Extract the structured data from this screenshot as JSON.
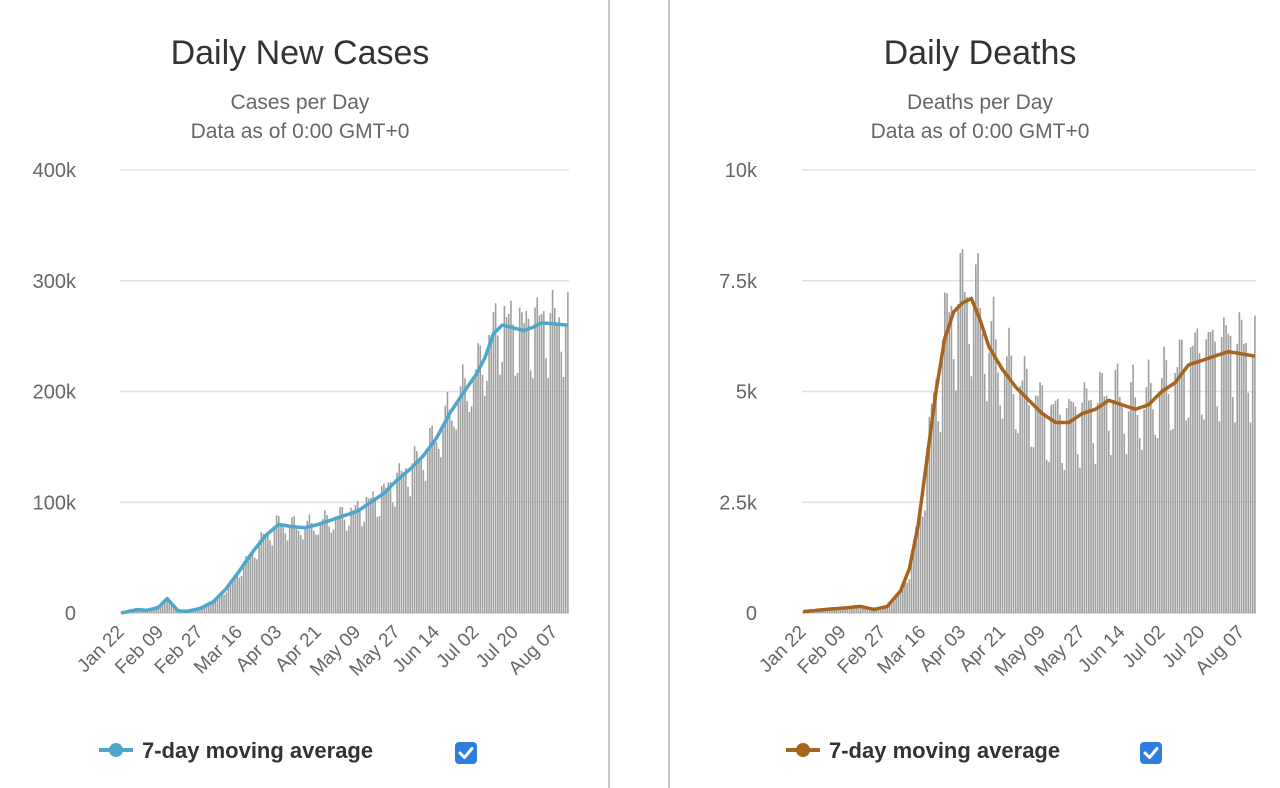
{
  "colors": {
    "bar": "#9e9e9e",
    "cases_line": "#4fa6cc",
    "deaths_line": "#a5651f",
    "grid": "#e0e0e0",
    "axis_text": "#666666",
    "checkbox": "#2f7de1"
  },
  "chart_data": [
    {
      "type": "bar",
      "title": "Daily New Cases",
      "subtitle_lines": [
        "Cases per Day",
        "Data as of 0:00 GMT+0"
      ],
      "ylim": [
        0,
        400000
      ],
      "y_ticks": [
        0,
        100000,
        200000,
        300000,
        400000
      ],
      "y_tick_labels": [
        "0",
        "100k",
        "200k",
        "300k",
        "400k"
      ],
      "x_tick_labels": [
        "Jan 22",
        "Feb 09",
        "Feb 27",
        "Mar 16",
        "Apr 03",
        "Apr 21",
        "May 09",
        "May 27",
        "Jun 14",
        "Jul 02",
        "Jul 20",
        "Aug 07"
      ],
      "start_date": "Jan 22",
      "anchors": [
        [
          0,
          0
        ],
        [
          7,
          3000
        ],
        [
          12,
          2500
        ],
        [
          17,
          5000
        ],
        [
          21,
          13000
        ],
        [
          26,
          2000
        ],
        [
          30,
          1500
        ],
        [
          36,
          4000
        ],
        [
          42,
          10000
        ],
        [
          48,
          22000
        ],
        [
          54,
          38000
        ],
        [
          60,
          55000
        ],
        [
          66,
          70000
        ],
        [
          72,
          80000
        ],
        [
          78,
          78000
        ],
        [
          84,
          77000
        ],
        [
          90,
          80000
        ],
        [
          96,
          84000
        ],
        [
          102,
          88000
        ],
        [
          108,
          92000
        ],
        [
          114,
          100000
        ],
        [
          120,
          108000
        ],
        [
          126,
          120000
        ],
        [
          132,
          130000
        ],
        [
          138,
          142000
        ],
        [
          144,
          158000
        ],
        [
          150,
          180000
        ],
        [
          156,
          198000
        ],
        [
          162,
          215000
        ],
        [
          166,
          230000
        ],
        [
          170,
          252000
        ],
        [
          174,
          260000
        ],
        [
          178,
          258000
        ],
        [
          184,
          255000
        ],
        [
          188,
          258000
        ],
        [
          192,
          262000
        ],
        [
          204,
          260000
        ]
      ],
      "daily_pattern": [
        1.0,
        1.06,
        1.1,
        1.08,
        1.01,
        0.87,
        0.83
      ],
      "series": [
        {
          "name": "7-day moving average",
          "type": "line"
        }
      ],
      "legend": {
        "label": "7-day moving average",
        "placement": "bottom",
        "checked": true
      }
    },
    {
      "type": "bar",
      "title": "Daily Deaths",
      "subtitle_lines": [
        "Deaths per Day",
        "Data as of 0:00 GMT+0"
      ],
      "ylim": [
        0,
        10000
      ],
      "y_ticks": [
        0,
        2500,
        5000,
        7500,
        10000
      ],
      "y_tick_labels": [
        "0",
        "2.5k",
        "5k",
        "7.5k",
        "10k"
      ],
      "x_tick_labels": [
        "Jan 22",
        "Feb 09",
        "Feb 27",
        "Mar 16",
        "Apr 03",
        "Apr 21",
        "May 09",
        "May 27",
        "Jun 14",
        "Jul 02",
        "Jul 20",
        "Aug 07"
      ],
      "start_date": "Jan 22",
      "anchors": [
        [
          0,
          30
        ],
        [
          10,
          80
        ],
        [
          20,
          120
        ],
        [
          26,
          150
        ],
        [
          32,
          80
        ],
        [
          38,
          150
        ],
        [
          44,
          500
        ],
        [
          48,
          1000
        ],
        [
          52,
          2000
        ],
        [
          56,
          3500
        ],
        [
          60,
          5000
        ],
        [
          64,
          6200
        ],
        [
          68,
          6800
        ],
        [
          72,
          7000
        ],
        [
          76,
          7100
        ],
        [
          80,
          6600
        ],
        [
          84,
          6000
        ],
        [
          90,
          5500
        ],
        [
          96,
          5100
        ],
        [
          102,
          4800
        ],
        [
          108,
          4500
        ],
        [
          114,
          4300
        ],
        [
          120,
          4300
        ],
        [
          126,
          4500
        ],
        [
          132,
          4600
        ],
        [
          138,
          4800
        ],
        [
          144,
          4700
        ],
        [
          150,
          4600
        ],
        [
          156,
          4700
        ],
        [
          162,
          5000
        ],
        [
          168,
          5200
        ],
        [
          174,
          5600
        ],
        [
          180,
          5700
        ],
        [
          186,
          5800
        ],
        [
          192,
          5900
        ],
        [
          204,
          5800
        ]
      ],
      "daily_pattern": [
        1.0,
        1.1,
        1.18,
        1.12,
        1.03,
        0.82,
        0.75
      ],
      "series": [
        {
          "name": "7-day moving average",
          "type": "line"
        }
      ],
      "legend": {
        "label": "7-day moving average",
        "placement": "bottom",
        "checked": true
      }
    }
  ]
}
